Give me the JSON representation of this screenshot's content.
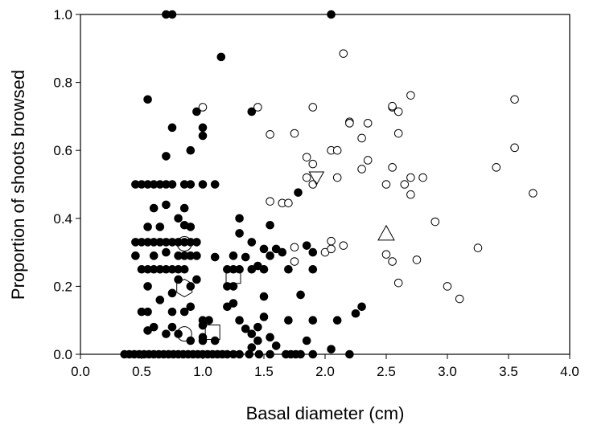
{
  "chart_data": {
    "type": "scatter",
    "title": "",
    "xlabel": "Basal diameter (cm)",
    "ylabel": "Proportion of shoots browsed",
    "xlim": [
      0,
      4
    ],
    "ylim": [
      0,
      1
    ],
    "xticks": [
      "0.0",
      "0.5",
      "1.0",
      "1.5",
      "2.0",
      "2.5",
      "3.0",
      "3.5",
      "4.0"
    ],
    "yticks": [
      "0.0",
      "0.2",
      "0.4",
      "0.6",
      "0.8",
      "1.0"
    ],
    "grid": false,
    "legend": "none",
    "series": [
      {
        "marker": "filled-circle",
        "color": "#000000",
        "points": [
          [
            0.36,
            0
          ],
          [
            0.4,
            0
          ],
          [
            0.44,
            0
          ],
          [
            0.48,
            0
          ],
          [
            0.52,
            0
          ],
          [
            0.56,
            0
          ],
          [
            0.6,
            0
          ],
          [
            0.64,
            0
          ],
          [
            0.68,
            0
          ],
          [
            0.72,
            0
          ],
          [
            0.76,
            0
          ],
          [
            0.8,
            0
          ],
          [
            0.84,
            0
          ],
          [
            0.88,
            0
          ],
          [
            0.92,
            0
          ],
          [
            0.96,
            0
          ],
          [
            1.0,
            0
          ],
          [
            1.04,
            0
          ],
          [
            1.08,
            0
          ],
          [
            1.12,
            0
          ],
          [
            1.16,
            0
          ],
          [
            1.2,
            0
          ],
          [
            1.25,
            0
          ],
          [
            1.3,
            0
          ],
          [
            1.38,
            0
          ],
          [
            1.46,
            0
          ],
          [
            1.55,
            0
          ],
          [
            1.68,
            0
          ],
          [
            1.72,
            0
          ],
          [
            1.76,
            0
          ],
          [
            1.8,
            0
          ],
          [
            1.9,
            0
          ],
          [
            2.2,
            0
          ],
          [
            0.45,
            0.5
          ],
          [
            0.5,
            0.5
          ],
          [
            0.55,
            0.5
          ],
          [
            0.6,
            0.5
          ],
          [
            0.65,
            0.5
          ],
          [
            0.7,
            0.5
          ],
          [
            0.75,
            0.5
          ],
          [
            0.85,
            0.5
          ],
          [
            0.9,
            0.5
          ],
          [
            1.0,
            0.5
          ],
          [
            1.1,
            0.5
          ],
          [
            0.45,
            0.33
          ],
          [
            0.5,
            0.33
          ],
          [
            0.55,
            0.33
          ],
          [
            0.6,
            0.33
          ],
          [
            0.65,
            0.33
          ],
          [
            0.7,
            0.33
          ],
          [
            0.75,
            0.33
          ],
          [
            0.8,
            0.33
          ],
          [
            0.85,
            0.33
          ],
          [
            0.9,
            0.33
          ],
          [
            0.95,
            0.33
          ],
          [
            0.5,
            0.25
          ],
          [
            0.55,
            0.25
          ],
          [
            0.6,
            0.25
          ],
          [
            0.65,
            0.25
          ],
          [
            0.7,
            0.25
          ],
          [
            0.75,
            0.25
          ],
          [
            0.8,
            0.25
          ],
          [
            0.85,
            0.25
          ],
          [
            1.2,
            0.25
          ],
          [
            1.25,
            0.25
          ],
          [
            1.3,
            0.25
          ],
          [
            1.5,
            0.25
          ],
          [
            0.45,
            0.29
          ],
          [
            0.6,
            0.29
          ],
          [
            0.8,
            0.29
          ],
          [
            0.85,
            0.29
          ],
          [
            0.9,
            0.29
          ],
          [
            0.95,
            0.29
          ],
          [
            1.25,
            0.29
          ],
          [
            1.55,
            0.29
          ],
          [
            0.7,
            1.0
          ],
          [
            0.75,
            1.0
          ],
          [
            2.05,
            1.0
          ],
          [
            1.15,
            0.875
          ],
          [
            0.55,
            0.75
          ],
          [
            0.95,
            0.714
          ],
          [
            1.4,
            0.714
          ],
          [
            1.0,
            0.667
          ],
          [
            0.75,
            0.667
          ],
          [
            1.0,
            0.643
          ],
          [
            0.9,
            0.6
          ],
          [
            0.7,
            0.583
          ],
          [
            1.78,
            0.476
          ],
          [
            0.7,
            0.44
          ],
          [
            0.6,
            0.43
          ],
          [
            0.85,
            0.43
          ],
          [
            1.3,
            0.4
          ],
          [
            0.8,
            0.4
          ],
          [
            0.65,
            0.375
          ],
          [
            0.9,
            0.375
          ],
          [
            0.55,
            0.375
          ],
          [
            1.55,
            0.38
          ],
          [
            0.85,
            0.38
          ],
          [
            1.3,
            0.356
          ],
          [
            1.9,
            0.3
          ],
          [
            1.85,
            0.32
          ],
          [
            1.4,
            0.33
          ],
          [
            1.5,
            0.31
          ],
          [
            1.6,
            0.31
          ],
          [
            1.65,
            0.3
          ],
          [
            0.7,
            0.3
          ],
          [
            1.35,
            0.286
          ],
          [
            1.1,
            0.286
          ],
          [
            1.45,
            0.26
          ],
          [
            1.4,
            0.25
          ],
          [
            1.7,
            0.25
          ],
          [
            1.9,
            0.25
          ],
          [
            1.8,
            0.175
          ],
          [
            1.5,
            0.17
          ],
          [
            1.25,
            0.2
          ],
          [
            1.2,
            0.2
          ],
          [
            0.9,
            0.2
          ],
          [
            0.8,
            0.22
          ],
          [
            0.55,
            0.2
          ],
          [
            0.65,
            0.16
          ],
          [
            0.75,
            0.18
          ],
          [
            0.95,
            0.22
          ],
          [
            0.75,
            0.125
          ],
          [
            0.5,
            0.125
          ],
          [
            0.55,
            0.125
          ],
          [
            0.85,
            0.125
          ],
          [
            0.9,
            0.14
          ],
          [
            1.0,
            0.1
          ],
          [
            1.05,
            0.1
          ],
          [
            0.6,
            0.08
          ],
          [
            0.7,
            0.06
          ],
          [
            0.8,
            0.06
          ],
          [
            0.55,
            0.07
          ],
          [
            0.75,
            0.08
          ],
          [
            1.0,
            0.05
          ],
          [
            1.3,
            0.1
          ],
          [
            1.45,
            0.08
          ],
          [
            1.4,
            0.06
          ],
          [
            1.35,
            0.075
          ],
          [
            1.5,
            0.11
          ],
          [
            1.2,
            0.14
          ],
          [
            1.25,
            0.15
          ],
          [
            1.7,
            0.1
          ],
          [
            1.85,
            0.04
          ],
          [
            1.6,
            0.025
          ],
          [
            1.55,
            0.05
          ],
          [
            1.45,
            0.04
          ],
          [
            1.0,
            0.085
          ],
          [
            2.05,
            0.015
          ],
          [
            2.1,
            0.1
          ],
          [
            2.25,
            0.12
          ],
          [
            2.3,
            0.14
          ],
          [
            1.9,
            0.1
          ],
          [
            1.1,
            0.04
          ],
          [
            1.4,
            0.02
          ],
          [
            0.9,
            0.04
          ],
          [
            1.0,
            0.04
          ]
        ]
      },
      {
        "marker": "open-circle",
        "color": "#000000",
        "points": [
          [
            2.15,
            0.885
          ],
          [
            1.0,
            0.727
          ],
          [
            1.45,
            0.727
          ],
          [
            1.9,
            0.727
          ],
          [
            2.55,
            0.727
          ],
          [
            2.7,
            0.762
          ],
          [
            2.55,
            0.73
          ],
          [
            2.6,
            0.714
          ],
          [
            3.55,
            0.75
          ],
          [
            2.2,
            0.684
          ],
          [
            2.2,
            0.68
          ],
          [
            2.35,
            0.68
          ],
          [
            2.6,
            0.65
          ],
          [
            1.75,
            0.65
          ],
          [
            1.55,
            0.647
          ],
          [
            2.05,
            0.6
          ],
          [
            2.1,
            0.6
          ],
          [
            3.55,
            0.608
          ],
          [
            2.3,
            0.636
          ],
          [
            1.85,
            0.58
          ],
          [
            1.9,
            0.56
          ],
          [
            2.3,
            0.545
          ],
          [
            2.35,
            0.571
          ],
          [
            2.8,
            0.52
          ],
          [
            2.7,
            0.52
          ],
          [
            2.1,
            0.52
          ],
          [
            1.85,
            0.52
          ],
          [
            2.5,
            0.5
          ],
          [
            2.65,
            0.5
          ],
          [
            1.9,
            0.5
          ],
          [
            2.55,
            0.55
          ],
          [
            3.4,
            0.55
          ],
          [
            2.7,
            0.47
          ],
          [
            3.7,
            0.474
          ],
          [
            1.55,
            0.45
          ],
          [
            1.65,
            0.445
          ],
          [
            1.7,
            0.445
          ],
          [
            1.75,
            0.315
          ],
          [
            2.05,
            0.333
          ],
          [
            2.0,
            0.3
          ],
          [
            2.05,
            0.31
          ],
          [
            2.15,
            0.32
          ],
          [
            1.75,
            0.273
          ],
          [
            2.5,
            0.294
          ],
          [
            2.55,
            0.273
          ],
          [
            2.75,
            0.278
          ],
          [
            2.9,
            0.39
          ],
          [
            3.25,
            0.313
          ],
          [
            2.6,
            0.21
          ],
          [
            3.0,
            0.2
          ],
          [
            3.1,
            0.163
          ]
        ]
      },
      {
        "marker": "open-shapes",
        "color": "#000000",
        "points": [
          {
            "shape": "hexagon",
            "x": 0.85,
            "y": 0.195
          },
          {
            "shape": "square",
            "x": 1.25,
            "y": 0.23
          },
          {
            "shape": "square",
            "x": 1.08,
            "y": 0.065
          },
          {
            "shape": "triangle-up",
            "x": 2.5,
            "y": 0.355
          },
          {
            "shape": "triangle-down",
            "x": 1.93,
            "y": 0.52
          },
          {
            "shape": "circle-large",
            "x": 0.85,
            "y": 0.325
          },
          {
            "shape": "circle-large",
            "x": 0.85,
            "y": 0.06
          }
        ]
      }
    ]
  }
}
